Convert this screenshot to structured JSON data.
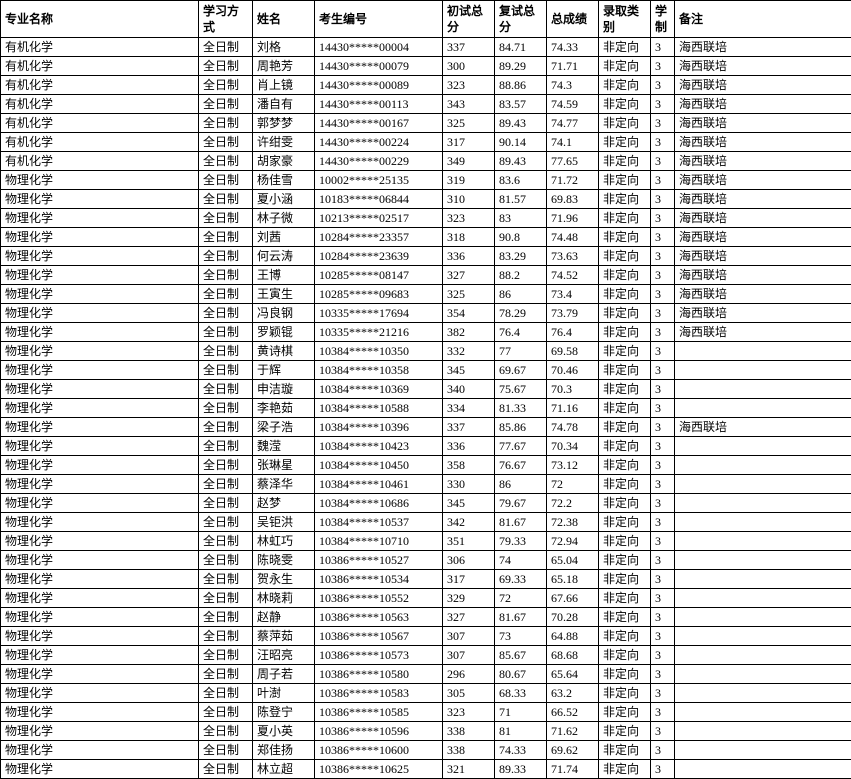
{
  "columns": [
    {
      "label": "专业名称",
      "class": "col-major"
    },
    {
      "label": "学习方式",
      "class": "col-mode"
    },
    {
      "label": "姓名",
      "class": "col-name"
    },
    {
      "label": "考生编号",
      "class": "col-id"
    },
    {
      "label": "初试总分",
      "class": "col-score1"
    },
    {
      "label": "复试总分",
      "class": "col-score2"
    },
    {
      "label": "总成绩",
      "class": "col-total"
    },
    {
      "label": "录取类别",
      "class": "col-category"
    },
    {
      "label": "学制",
      "class": "col-system"
    },
    {
      "label": "备注",
      "class": "col-remark"
    }
  ],
  "rows": [
    [
      "有机化学",
      "全日制",
      "刘格",
      "14430*****00004",
      "337",
      "84.71",
      "74.33",
      "非定向",
      "3",
      "海西联培"
    ],
    [
      "有机化学",
      "全日制",
      "周艳芳",
      "14430*****00079",
      "300",
      "89.29",
      "71.71",
      "非定向",
      "3",
      "海西联培"
    ],
    [
      "有机化学",
      "全日制",
      "肖上镜",
      "14430*****00089",
      "323",
      "88.86",
      "74.3",
      "非定向",
      "3",
      "海西联培"
    ],
    [
      "有机化学",
      "全日制",
      "潘自有",
      "14430*****00113",
      "343",
      "83.57",
      "74.59",
      "非定向",
      "3",
      "海西联培"
    ],
    [
      "有机化学",
      "全日制",
      "郭梦梦",
      "14430*****00167",
      "325",
      "89.43",
      "74.77",
      "非定向",
      "3",
      "海西联培"
    ],
    [
      "有机化学",
      "全日制",
      "许绀雯",
      "14430*****00224",
      "317",
      "90.14",
      "74.1",
      "非定向",
      "3",
      "海西联培"
    ],
    [
      "有机化学",
      "全日制",
      "胡家豪",
      "14430*****00229",
      "349",
      "89.43",
      "77.65",
      "非定向",
      "3",
      "海西联培"
    ],
    [
      "物理化学",
      "全日制",
      "杨佳雪",
      "10002*****25135",
      "319",
      "83.6",
      "71.72",
      "非定向",
      "3",
      "海西联培"
    ],
    [
      "物理化学",
      "全日制",
      "夏小涵",
      "10183*****06844",
      "310",
      "81.57",
      "69.83",
      "非定向",
      "3",
      "海西联培"
    ],
    [
      "物理化学",
      "全日制",
      "林子微",
      "10213*****02517",
      "323",
      "83",
      "71.96",
      "非定向",
      "3",
      "海西联培"
    ],
    [
      "物理化学",
      "全日制",
      "刘茜",
      "10284*****23357",
      "318",
      "90.8",
      "74.48",
      "非定向",
      "3",
      "海西联培"
    ],
    [
      "物理化学",
      "全日制",
      "何云涛",
      "10284*****23639",
      "336",
      "83.29",
      "73.63",
      "非定向",
      "3",
      "海西联培"
    ],
    [
      "物理化学",
      "全日制",
      "王博",
      "10285*****08147",
      "327",
      "88.2",
      "74.52",
      "非定向",
      "3",
      "海西联培"
    ],
    [
      "物理化学",
      "全日制",
      "王寅生",
      "10285*****09683",
      "325",
      "86",
      "73.4",
      "非定向",
      "3",
      "海西联培"
    ],
    [
      "物理化学",
      "全日制",
      "冯良钢",
      "10335*****17694",
      "354",
      "78.29",
      "73.79",
      "非定向",
      "3",
      "海西联培"
    ],
    [
      "物理化学",
      "全日制",
      "罗颖锟",
      "10335*****21216",
      "382",
      "76.4",
      "76.4",
      "非定向",
      "3",
      "海西联培"
    ],
    [
      "物理化学",
      "全日制",
      "黄诗棋",
      "10384*****10350",
      "332",
      "77",
      "69.58",
      "非定向",
      "3",
      ""
    ],
    [
      "物理化学",
      "全日制",
      "于辉",
      "10384*****10358",
      "345",
      "69.67",
      "70.46",
      "非定向",
      "3",
      ""
    ],
    [
      "物理化学",
      "全日制",
      "申洁璇",
      "10384*****10369",
      "340",
      "75.67",
      "70.3",
      "非定向",
      "3",
      ""
    ],
    [
      "物理化学",
      "全日制",
      "李艳茹",
      "10384*****10588",
      "334",
      "81.33",
      "71.16",
      "非定向",
      "3",
      ""
    ],
    [
      "物理化学",
      "全日制",
      "梁子浩",
      "10384*****10396",
      "337",
      "85.86",
      "74.78",
      "非定向",
      "3",
      "海西联培"
    ],
    [
      "物理化学",
      "全日制",
      "魏滢",
      "10384*****10423",
      "336",
      "77.67",
      "70.34",
      "非定向",
      "3",
      ""
    ],
    [
      "物理化学",
      "全日制",
      "张琳星",
      "10384*****10450",
      "358",
      "76.67",
      "73.12",
      "非定向",
      "3",
      ""
    ],
    [
      "物理化学",
      "全日制",
      "蔡泽华",
      "10384*****10461",
      "330",
      "86",
      "72",
      "非定向",
      "3",
      ""
    ],
    [
      "物理化学",
      "全日制",
      "赵梦",
      "10384*****10686",
      "345",
      "79.67",
      "72.2",
      "非定向",
      "3",
      ""
    ],
    [
      "物理化学",
      "全日制",
      "吴钜洪",
      "10384*****10537",
      "342",
      "81.67",
      "72.38",
      "非定向",
      "3",
      ""
    ],
    [
      "物理化学",
      "全日制",
      "林虹巧",
      "10384*****10710",
      "351",
      "79.33",
      "72.94",
      "非定向",
      "3",
      ""
    ],
    [
      "物理化学",
      "全日制",
      "陈晓雯",
      "10386*****10527",
      "306",
      "74",
      "65.04",
      "非定向",
      "3",
      ""
    ],
    [
      "物理化学",
      "全日制",
      "贺永生",
      "10386*****10534",
      "317",
      "69.33",
      "65.18",
      "非定向",
      "3",
      ""
    ],
    [
      "物理化学",
      "全日制",
      "林晓莉",
      "10386*****10552",
      "329",
      "72",
      "67.66",
      "非定向",
      "3",
      ""
    ],
    [
      "物理化学",
      "全日制",
      "赵静",
      "10386*****10563",
      "327",
      "81.67",
      "70.28",
      "非定向",
      "3",
      ""
    ],
    [
      "物理化学",
      "全日制",
      "蔡萍茹",
      "10386*****10567",
      "307",
      "73",
      "64.88",
      "非定向",
      "3",
      ""
    ],
    [
      "物理化学",
      "全日制",
      "汪昭亮",
      "10386*****10573",
      "307",
      "85.67",
      "68.68",
      "非定向",
      "3",
      ""
    ],
    [
      "物理化学",
      "全日制",
      "周子若",
      "10386*****10580",
      "296",
      "80.67",
      "65.64",
      "非定向",
      "3",
      ""
    ],
    [
      "物理化学",
      "全日制",
      "叶澍",
      "10386*****10583",
      "305",
      "68.33",
      "63.2",
      "非定向",
      "3",
      ""
    ],
    [
      "物理化学",
      "全日制",
      "陈登宁",
      "10386*****10585",
      "323",
      "71",
      "66.52",
      "非定向",
      "3",
      ""
    ],
    [
      "物理化学",
      "全日制",
      "夏小英",
      "10386*****10596",
      "338",
      "81",
      "71.62",
      "非定向",
      "3",
      ""
    ],
    [
      "物理化学",
      "全日制",
      "郑佳扬",
      "10386*****10600",
      "338",
      "74.33",
      "69.62",
      "非定向",
      "3",
      ""
    ],
    [
      "物理化学",
      "全日制",
      "林立超",
      "10386*****10625",
      "321",
      "89.33",
      "71.74",
      "非定向",
      "3",
      ""
    ]
  ]
}
